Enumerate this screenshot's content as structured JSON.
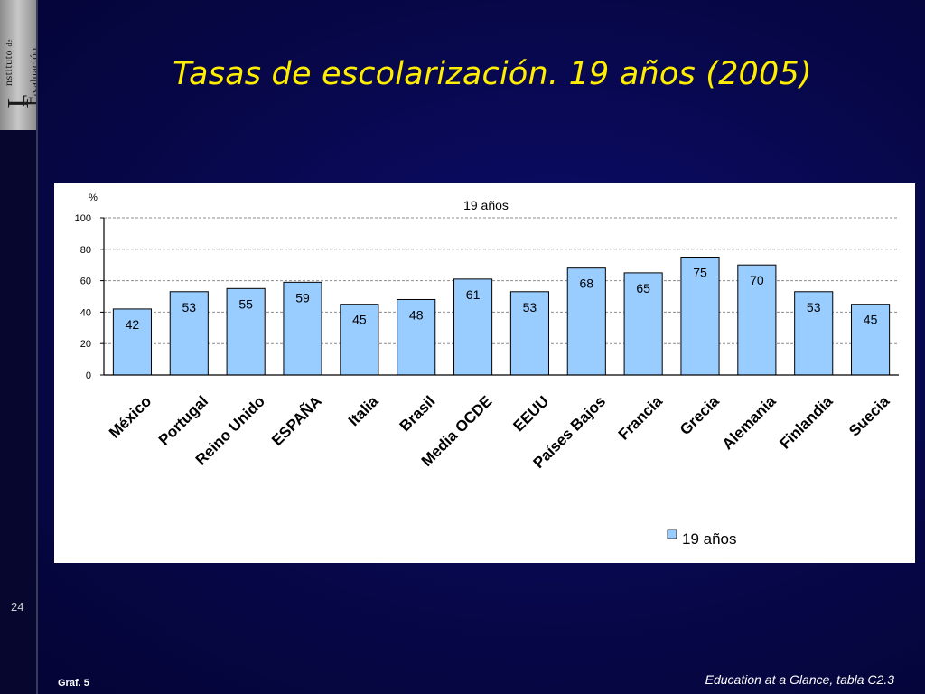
{
  "slide": {
    "title": "Tasas de escolarización. 19 años (2005)",
    "page_number": "24",
    "graf_label": "Graf. 5",
    "source": "Education at a Glance, tabla C2.3",
    "logo": {
      "line1": "nstituto",
      "de": "de",
      "line2": "valuación",
      "letter_i": "I",
      "letter_e": "E"
    }
  },
  "colors": {
    "bar_fill": "#99ccff",
    "bar_stroke": "#000000",
    "title": "#ffee00",
    "grid": "#8c8c8c"
  },
  "chart_data": {
    "type": "bar",
    "title": "19 años",
    "ylabel": "%",
    "xlabel": "",
    "ylim": [
      0,
      100
    ],
    "yticks": [
      0,
      20,
      40,
      60,
      80,
      100
    ],
    "grid": true,
    "legend_position": "bottom-right",
    "categories": [
      "México",
      "Portugal",
      "Reino Unido",
      "ESPAÑA",
      "Italia",
      "Brasil",
      "Media OCDE",
      "EEUU",
      "Países Bajos",
      "Francia",
      "Grecia",
      "Alemania",
      "Finlandia",
      "Suecia"
    ],
    "series": [
      {
        "name": "19 años",
        "values": [
          42,
          53,
          55,
          59,
          45,
          48,
          61,
          53,
          68,
          65,
          75,
          70,
          53,
          45
        ]
      }
    ]
  }
}
